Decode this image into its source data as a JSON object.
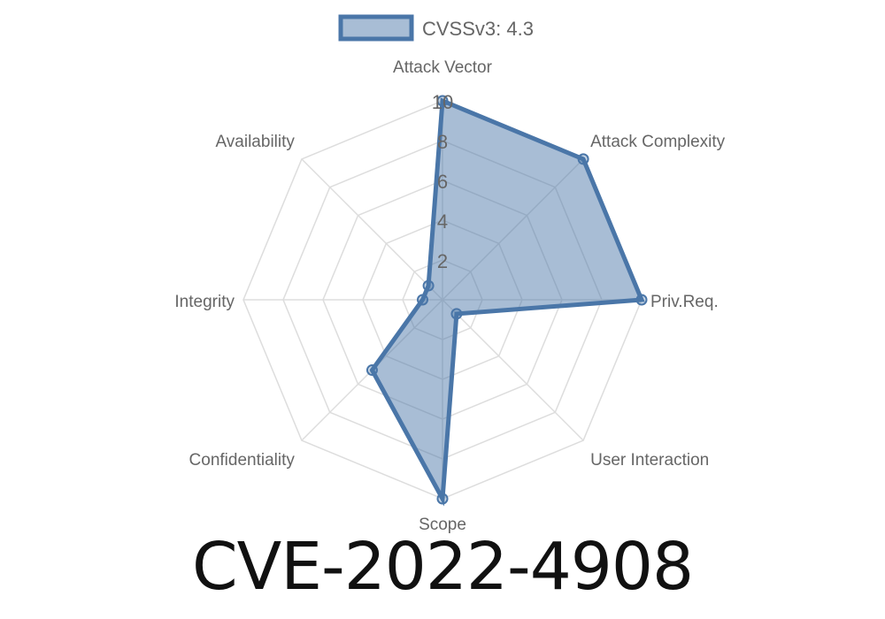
{
  "chart_data": {
    "type": "radar",
    "axes": [
      "Attack Vector",
      "Attack Complexity",
      "Priv.Req.",
      "User Interaction",
      "Scope",
      "Confidentiality",
      "Integrity",
      "Availability"
    ],
    "series": [
      {
        "name": "CVSSv3: 4.3",
        "values": [
          10,
          10,
          10,
          1,
          10,
          5,
          1,
          1
        ]
      }
    ],
    "rlim": [
      0,
      10
    ],
    "ticks": [
      "2",
      "4",
      "6",
      "8",
      "10"
    ],
    "legend": "top",
    "grid": true,
    "colors": {
      "line": "#4a76a8",
      "fill": "#4a76a8",
      "grid": "#dddddd",
      "text": "#666666"
    }
  },
  "title": "CVE-2022-4908"
}
